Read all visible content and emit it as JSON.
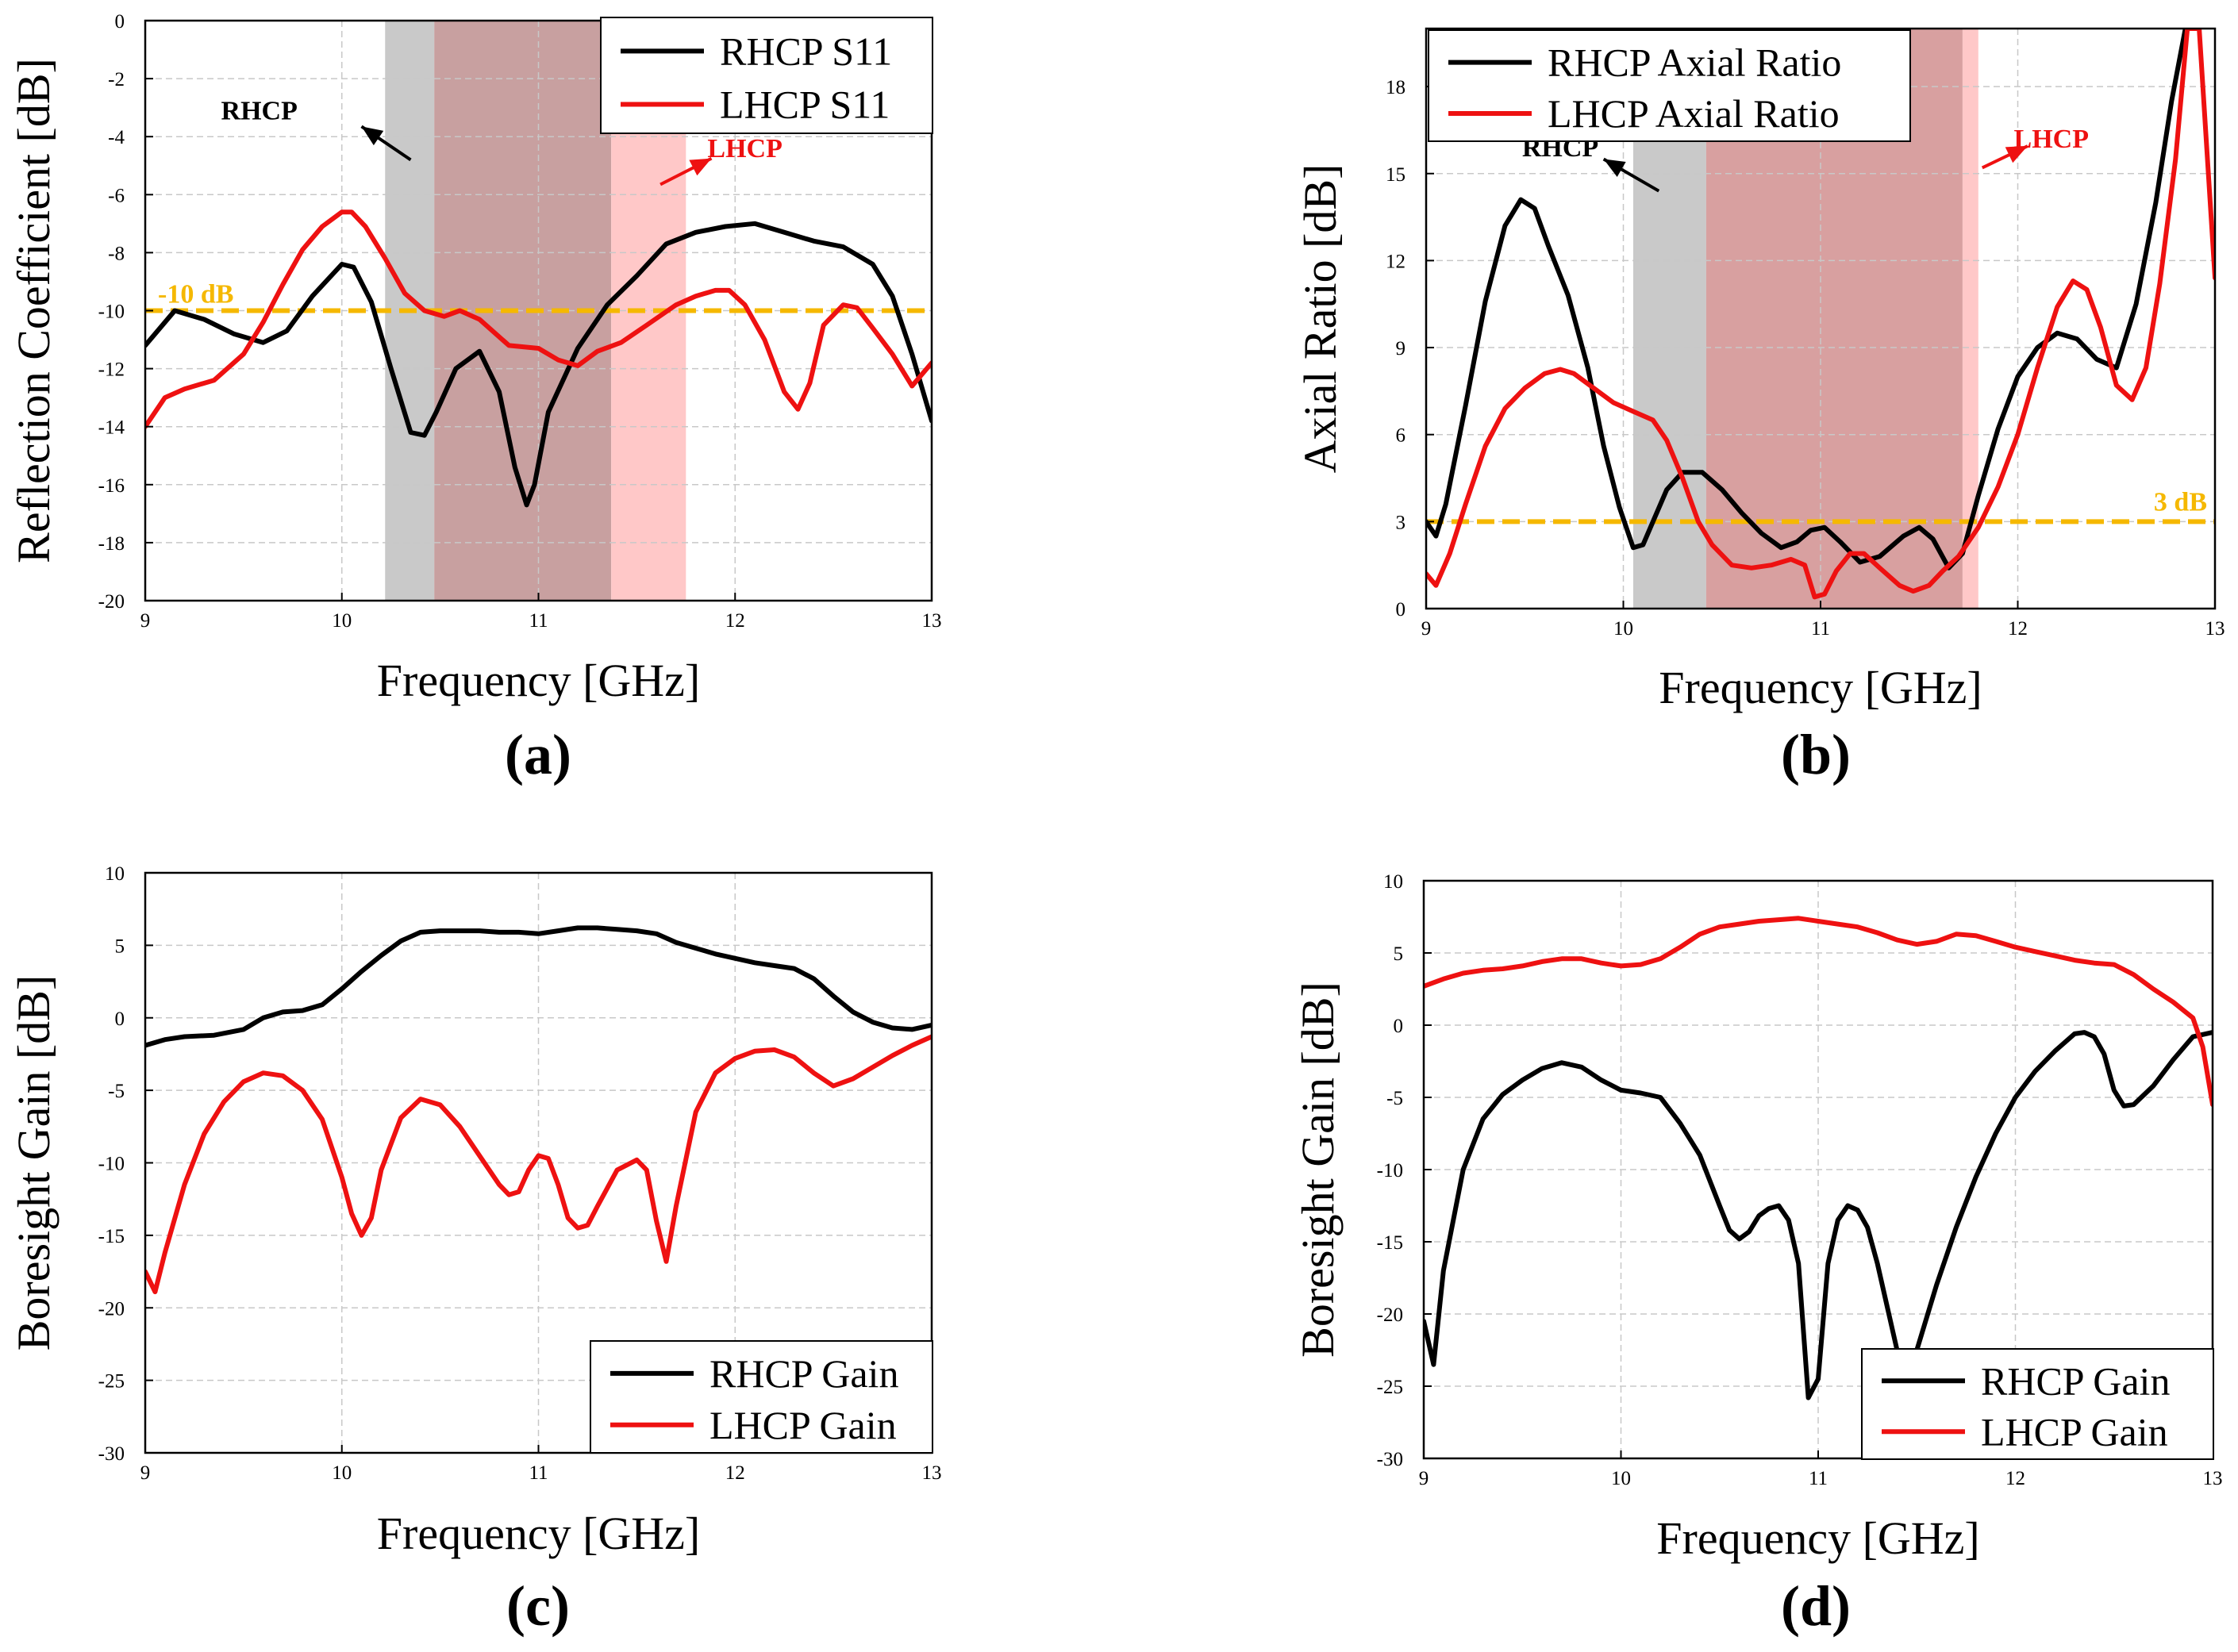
{
  "figure": {
    "colors": {
      "rhcp": "#000000",
      "lhcp": "#ee1111",
      "ref_line": "#f5b800",
      "grid": "#c8c8c8"
    }
  },
  "chart_data": [
    {
      "type": "line",
      "caption": "(a)",
      "xlabel": "Frequency [GHz]",
      "ylabel": "Reflection Coefficient [dB]",
      "xlim": [
        9,
        13
      ],
      "ylim": [
        -20,
        0
      ],
      "xticks": [
        9,
        10,
        11,
        12,
        13
      ],
      "yticks": [
        -20,
        -18,
        -16,
        -14,
        -12,
        -10,
        -8,
        -6,
        -4,
        -2,
        0
      ],
      "grid": true,
      "legend_position": "top-right",
      "reference_line": {
        "y": -10,
        "label": "-10 dB"
      },
      "bands": [
        {
          "x0": 10.22,
          "x1": 10.47,
          "color": "#c9c9c9"
        },
        {
          "x0": 10.47,
          "x1": 11.37,
          "color": "#c8a0a0"
        },
        {
          "x0": 11.37,
          "x1": 11.75,
          "color": "#ffc8c8"
        }
      ],
      "annotations": [
        {
          "text": "RHCP",
          "color": "#000000",
          "x": 9.58,
          "y": -3.4,
          "arrow": [
            [
              10.35,
              -4.8
            ],
            [
              10.1,
              -3.65
            ]
          ]
        },
        {
          "text": "LHCP",
          "color": "#ee1111",
          "x": 12.05,
          "y": -4.7,
          "arrow": [
            [
              11.62,
              -5.65
            ],
            [
              11.88,
              -4.75
            ]
          ]
        }
      ],
      "series": [
        {
          "name": "RHCP S11",
          "color": "#000000",
          "x": [
            9.0,
            9.15,
            9.3,
            9.45,
            9.6,
            9.72,
            9.85,
            10.0,
            10.06,
            10.15,
            10.25,
            10.35,
            10.42,
            10.48,
            10.58,
            10.7,
            10.8,
            10.88,
            10.94,
            10.98,
            11.05,
            11.2,
            11.35,
            11.5,
            11.65,
            11.8,
            11.95,
            12.1,
            12.25,
            12.4,
            12.55,
            12.7,
            12.8,
            12.9,
            13.0
          ],
          "y": [
            -11.2,
            -10.0,
            -10.3,
            -10.8,
            -11.1,
            -10.7,
            -9.5,
            -8.4,
            -8.5,
            -9.7,
            -12.0,
            -14.2,
            -14.3,
            -13.5,
            -12.0,
            -11.4,
            -12.8,
            -15.4,
            -16.7,
            -16.0,
            -13.5,
            -11.3,
            -9.8,
            -8.8,
            -7.7,
            -7.3,
            -7.1,
            -7.0,
            -7.3,
            -7.6,
            -7.8,
            -8.4,
            -9.5,
            -11.5,
            -13.8
          ]
        },
        {
          "name": "LHCP S11",
          "color": "#ee1111",
          "x": [
            9.0,
            9.1,
            9.2,
            9.35,
            9.5,
            9.6,
            9.7,
            9.8,
            9.9,
            10.0,
            10.05,
            10.12,
            10.22,
            10.32,
            10.42,
            10.52,
            10.6,
            10.7,
            10.85,
            11.0,
            11.1,
            11.2,
            11.3,
            11.42,
            11.55,
            11.7,
            11.8,
            11.9,
            11.97,
            12.05,
            12.15,
            12.25,
            12.32,
            12.38,
            12.45,
            12.55,
            12.62,
            12.7,
            12.8,
            12.9,
            13.0
          ],
          "y": [
            -14.0,
            -13.0,
            -12.7,
            -12.4,
            -11.5,
            -10.4,
            -9.1,
            -7.9,
            -7.1,
            -6.6,
            -6.6,
            -7.1,
            -8.2,
            -9.4,
            -10.0,
            -10.2,
            -10.0,
            -10.3,
            -11.2,
            -11.3,
            -11.7,
            -11.9,
            -11.4,
            -11.1,
            -10.5,
            -9.8,
            -9.5,
            -9.3,
            -9.3,
            -9.8,
            -11.0,
            -12.8,
            -13.4,
            -12.5,
            -10.5,
            -9.8,
            -9.9,
            -10.6,
            -11.5,
            -12.6,
            -11.8
          ]
        }
      ]
    },
    {
      "type": "line",
      "caption": "(b)",
      "xlabel": "Frequency [GHz]",
      "ylabel": "Axial Ratio [dB]",
      "xlim": [
        9,
        13
      ],
      "ylim": [
        0,
        20
      ],
      "xticks": [
        9,
        10,
        11,
        12,
        13
      ],
      "yticks": [
        0,
        3,
        6,
        9,
        12,
        15,
        18
      ],
      "grid": true,
      "legend_position": "top-left",
      "reference_line": {
        "y": 3,
        "label": "3 dB"
      },
      "bands": [
        {
          "x0": 10.05,
          "x1": 10.42,
          "color": "#c9c9c9"
        },
        {
          "x0": 10.42,
          "x1": 11.72,
          "color": "#d8a0a0"
        },
        {
          "x0": 11.72,
          "x1": 11.8,
          "color": "#ffc8c8"
        }
      ],
      "annotations": [
        {
          "text": "RHCP",
          "color": "#000000",
          "x": 9.68,
          "y": 15.6,
          "arrow": [
            [
              10.18,
              14.4
            ],
            [
              9.9,
              15.5
            ]
          ]
        },
        {
          "text": "LHCP",
          "color": "#ee1111",
          "x": 12.17,
          "y": 15.9,
          "arrow": [
            [
              11.82,
              15.2
            ],
            [
              12.05,
              15.95
            ]
          ]
        }
      ],
      "series": [
        {
          "name": "RHCP Axial Ratio",
          "color": "#000000",
          "x": [
            9.0,
            9.05,
            9.1,
            9.2,
            9.3,
            9.4,
            9.48,
            9.55,
            9.62,
            9.72,
            9.82,
            9.9,
            9.98,
            10.05,
            10.1,
            10.15,
            10.22,
            10.3,
            10.4,
            10.5,
            10.6,
            10.7,
            10.8,
            10.88,
            10.95,
            11.02,
            11.1,
            11.2,
            11.3,
            11.42,
            11.5,
            11.57,
            11.65,
            11.72,
            11.8,
            11.9,
            12.0,
            12.1,
            12.2,
            12.3,
            12.4,
            12.5,
            12.6,
            12.7,
            12.78,
            12.85,
            12.9
          ],
          "y": [
            3.0,
            2.5,
            3.6,
            7.0,
            10.6,
            13.2,
            14.1,
            13.8,
            12.5,
            10.8,
            8.3,
            5.6,
            3.5,
            2.1,
            2.2,
            3.0,
            4.1,
            4.7,
            4.7,
            4.1,
            3.3,
            2.6,
            2.1,
            2.3,
            2.7,
            2.8,
            2.3,
            1.6,
            1.8,
            2.5,
            2.8,
            2.4,
            1.4,
            1.9,
            3.9,
            6.2,
            8.0,
            9.0,
            9.5,
            9.3,
            8.6,
            8.3,
            10.5,
            14.0,
            17.5,
            20.0,
            20.0
          ]
        },
        {
          "name": "LHCP Axial Ratio",
          "color": "#ee1111",
          "x": [
            9.0,
            9.05,
            9.12,
            9.2,
            9.3,
            9.4,
            9.5,
            9.6,
            9.68,
            9.75,
            9.85,
            9.95,
            10.05,
            10.15,
            10.22,
            10.3,
            10.38,
            10.45,
            10.55,
            10.65,
            10.75,
            10.85,
            10.92,
            10.97,
            11.02,
            11.08,
            11.15,
            11.22,
            11.3,
            11.4,
            11.47,
            11.55,
            11.62,
            11.7,
            11.8,
            11.9,
            12.0,
            12.1,
            12.2,
            12.28,
            12.35,
            12.42,
            12.5,
            12.58,
            12.65,
            12.72,
            12.8,
            12.86,
            12.92,
            13.0
          ],
          "y": [
            1.2,
            0.8,
            1.9,
            3.6,
            5.6,
            6.9,
            7.6,
            8.1,
            8.25,
            8.1,
            7.6,
            7.1,
            6.8,
            6.5,
            5.8,
            4.5,
            3.0,
            2.2,
            1.5,
            1.4,
            1.5,
            1.7,
            1.5,
            0.4,
            0.5,
            1.3,
            1.9,
            1.9,
            1.4,
            0.8,
            0.6,
            0.8,
            1.3,
            1.8,
            2.8,
            4.2,
            6.0,
            8.3,
            10.4,
            11.3,
            11.0,
            9.7,
            7.7,
            7.2,
            8.3,
            11.2,
            15.5,
            20.0,
            20.0,
            11.4
          ]
        }
      ]
    },
    {
      "type": "line",
      "caption": "(c)",
      "xlabel": "Frequency [GHz]",
      "ylabel": "Boresight Gain [dB]",
      "xlim": [
        9,
        13
      ],
      "ylim": [
        -30,
        10
      ],
      "xticks": [
        9,
        10,
        11,
        12,
        13
      ],
      "yticks": [
        -30,
        -25,
        -20,
        -15,
        -10,
        -5,
        0,
        5,
        10
      ],
      "grid": true,
      "legend_position": "bottom-right",
      "series": [
        {
          "name": "RHCP Gain",
          "color": "#000000",
          "x": [
            9.0,
            9.1,
            9.2,
            9.35,
            9.5,
            9.6,
            9.7,
            9.8,
            9.9,
            10.0,
            10.1,
            10.2,
            10.3,
            10.4,
            10.5,
            10.6,
            10.7,
            10.8,
            10.9,
            11.0,
            11.1,
            11.2,
            11.3,
            11.4,
            11.5,
            11.6,
            11.7,
            11.8,
            11.9,
            12.0,
            12.1,
            12.2,
            12.3,
            12.4,
            12.5,
            12.6,
            12.7,
            12.8,
            12.9,
            13.0
          ],
          "y": [
            -1.9,
            -1.5,
            -1.3,
            -1.2,
            -0.8,
            0.0,
            0.4,
            0.5,
            0.9,
            2.0,
            3.2,
            4.3,
            5.3,
            5.9,
            6.0,
            6.0,
            6.0,
            5.9,
            5.9,
            5.8,
            6.0,
            6.2,
            6.2,
            6.1,
            6.0,
            5.8,
            5.2,
            4.8,
            4.4,
            4.1,
            3.8,
            3.6,
            3.4,
            2.7,
            1.5,
            0.4,
            -0.3,
            -0.7,
            -0.8,
            -0.5
          ]
        },
        {
          "name": "LHCP Gain",
          "color": "#ee1111",
          "x": [
            9.0,
            9.05,
            9.1,
            9.2,
            9.3,
            9.4,
            9.5,
            9.6,
            9.7,
            9.8,
            9.9,
            10.0,
            10.05,
            10.1,
            10.15,
            10.2,
            10.3,
            10.4,
            10.5,
            10.6,
            10.7,
            10.8,
            10.85,
            10.9,
            10.95,
            11.0,
            11.05,
            11.1,
            11.15,
            11.2,
            11.25,
            11.3,
            11.4,
            11.5,
            11.55,
            11.6,
            11.65,
            11.7,
            11.8,
            11.9,
            12.0,
            12.1,
            12.2,
            12.3,
            12.4,
            12.5,
            12.6,
            12.7,
            12.8,
            12.9,
            13.0
          ],
          "y": [
            -17.5,
            -18.9,
            -16.2,
            -11.5,
            -8.0,
            -5.8,
            -4.4,
            -3.8,
            -4.0,
            -5.0,
            -7.0,
            -11.0,
            -13.5,
            -15.0,
            -13.8,
            -10.5,
            -6.9,
            -5.6,
            -6.0,
            -7.5,
            -9.5,
            -11.5,
            -12.2,
            -12.0,
            -10.5,
            -9.5,
            -9.7,
            -11.5,
            -13.8,
            -14.5,
            -14.3,
            -13.0,
            -10.5,
            -9.8,
            -10.5,
            -14.0,
            -16.8,
            -13.0,
            -6.5,
            -3.8,
            -2.8,
            -2.3,
            -2.2,
            -2.7,
            -3.8,
            -4.7,
            -4.2,
            -3.4,
            -2.6,
            -1.9,
            -1.3
          ]
        }
      ]
    },
    {
      "type": "line",
      "caption": "(d)",
      "xlabel": "Frequency [GHz]",
      "ylabel": "Boresight Gain [dB]",
      "xlim": [
        9,
        13
      ],
      "ylim": [
        -30,
        10
      ],
      "xticks": [
        9,
        10,
        11,
        12,
        13
      ],
      "yticks": [
        -30,
        -25,
        -20,
        -15,
        -10,
        -5,
        0,
        5,
        10
      ],
      "grid": true,
      "legend_position": "bottom-right",
      "series": [
        {
          "name": "RHCP Gain",
          "color": "#000000",
          "x": [
            9.0,
            9.05,
            9.1,
            9.2,
            9.3,
            9.4,
            9.5,
            9.6,
            9.7,
            9.8,
            9.9,
            10.0,
            10.1,
            10.2,
            10.3,
            10.4,
            10.5,
            10.55,
            10.6,
            10.65,
            10.7,
            10.75,
            10.8,
            10.85,
            10.9,
            10.95,
            11.0,
            11.05,
            11.1,
            11.15,
            11.2,
            11.25,
            11.3,
            11.35,
            11.4,
            11.45,
            11.5,
            11.6,
            11.7,
            11.8,
            11.9,
            12.0,
            12.1,
            12.2,
            12.3,
            12.35,
            12.4,
            12.45,
            12.5,
            12.55,
            12.6,
            12.7,
            12.8,
            12.9,
            13.0
          ],
          "y": [
            -20.5,
            -23.5,
            -17.0,
            -10.0,
            -6.5,
            -4.8,
            -3.8,
            -3.0,
            -2.6,
            -2.9,
            -3.8,
            -4.5,
            -4.7,
            -5.0,
            -6.8,
            -9.0,
            -12.5,
            -14.2,
            -14.8,
            -14.3,
            -13.2,
            -12.7,
            -12.5,
            -13.5,
            -16.5,
            -25.8,
            -24.5,
            -16.5,
            -13.5,
            -12.5,
            -12.8,
            -14.0,
            -16.5,
            -19.5,
            -22.5,
            -24.0,
            -22.5,
            -18.0,
            -14.0,
            -10.5,
            -7.5,
            -5.0,
            -3.2,
            -1.8,
            -0.6,
            -0.5,
            -0.8,
            -2.0,
            -4.5,
            -5.6,
            -5.5,
            -4.2,
            -2.4,
            -0.8,
            -0.5
          ]
        },
        {
          "name": "LHCP Gain",
          "color": "#ee1111",
          "x": [
            9.0,
            9.1,
            9.2,
            9.3,
            9.4,
            9.5,
            9.6,
            9.7,
            9.8,
            9.9,
            10.0,
            10.1,
            10.2,
            10.3,
            10.4,
            10.5,
            10.6,
            10.7,
            10.8,
            10.9,
            11.0,
            11.1,
            11.2,
            11.3,
            11.4,
            11.5,
            11.6,
            11.7,
            11.8,
            11.9,
            12.0,
            12.1,
            12.2,
            12.3,
            12.4,
            12.5,
            12.6,
            12.7,
            12.8,
            12.9,
            12.95,
            13.0
          ],
          "y": [
            2.7,
            3.2,
            3.6,
            3.8,
            3.9,
            4.1,
            4.4,
            4.6,
            4.6,
            4.3,
            4.1,
            4.2,
            4.6,
            5.4,
            6.3,
            6.8,
            7.0,
            7.2,
            7.3,
            7.4,
            7.2,
            7.0,
            6.8,
            6.4,
            5.9,
            5.6,
            5.8,
            6.3,
            6.2,
            5.8,
            5.4,
            5.1,
            4.8,
            4.5,
            4.3,
            4.2,
            3.5,
            2.5,
            1.6,
            0.5,
            -1.5,
            -5.5
          ]
        }
      ]
    }
  ]
}
